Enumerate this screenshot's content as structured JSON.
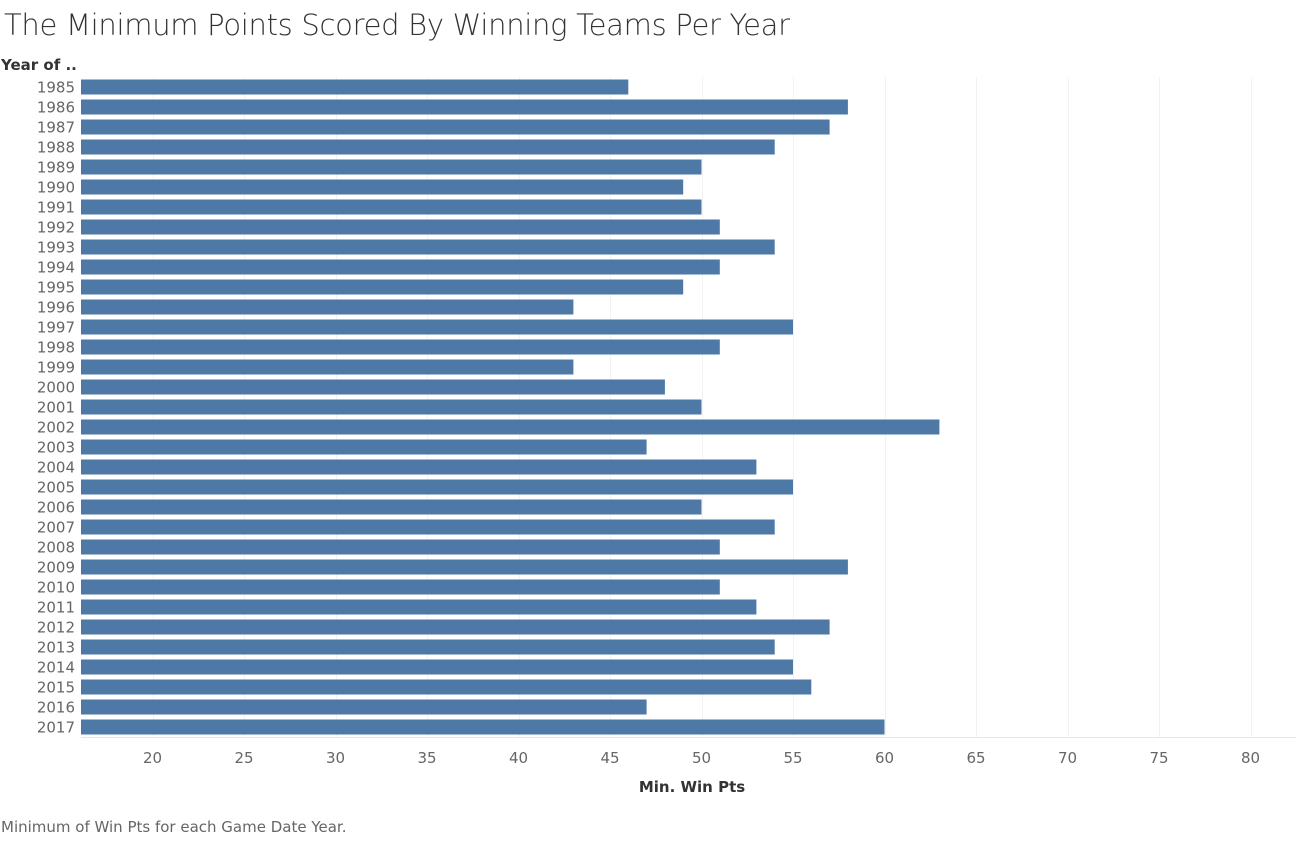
{
  "chart_data": {
    "type": "bar",
    "orientation": "horizontal",
    "title": "The Minimum Points Scored By Winning Teams Per Year",
    "row_header": "Year of ..",
    "xlabel": "Min. Win Pts",
    "caption": "Minimum of Win Pts for each Game Date Year.",
    "categories": [
      "1985",
      "1986",
      "1987",
      "1988",
      "1989",
      "1990",
      "1991",
      "1992",
      "1993",
      "1994",
      "1995",
      "1996",
      "1997",
      "1998",
      "1999",
      "2000",
      "2001",
      "2002",
      "2003",
      "2004",
      "2005",
      "2006",
      "2007",
      "2008",
      "2009",
      "2010",
      "2011",
      "2012",
      "2013",
      "2014",
      "2015",
      "2016",
      "2017"
    ],
    "values": [
      46,
      58,
      57,
      54,
      50,
      49,
      50,
      51,
      54,
      51,
      49,
      43,
      55,
      51,
      43,
      48,
      50,
      63,
      47,
      53,
      55,
      50,
      54,
      51,
      58,
      51,
      53,
      57,
      54,
      55,
      56,
      47,
      60
    ],
    "xlim": [
      16,
      83
    ],
    "xticks": [
      20,
      25,
      30,
      35,
      40,
      45,
      50,
      55,
      60,
      65,
      70,
      75,
      80
    ],
    "grid": true,
    "bar_color": "#4e79a7",
    "grid_color": "#f2f2f2"
  }
}
